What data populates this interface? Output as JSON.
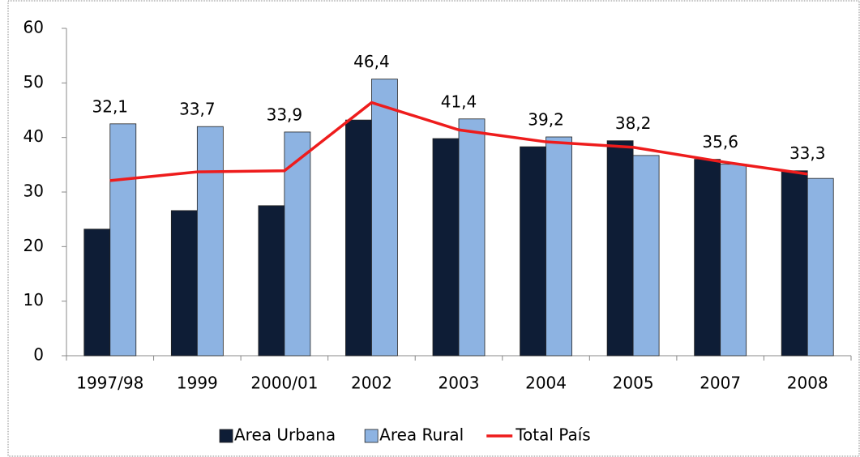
{
  "chart_data": {
    "type": "bar",
    "categories": [
      "1997/98",
      "1999",
      "2000/01",
      "2002",
      "2003",
      "2004",
      "2005",
      "2007",
      "2008"
    ],
    "series": [
      {
        "name": "Area Urbana",
        "type": "bar",
        "color": "#0e1d36",
        "values": [
          23.2,
          26.6,
          27.5,
          43.2,
          39.8,
          38.3,
          39.4,
          36.0,
          33.9
        ]
      },
      {
        "name": "Area Rural",
        "type": "bar",
        "color": "#8db3e2",
        "values": [
          42.5,
          42.0,
          41.0,
          50.7,
          43.4,
          40.1,
          36.7,
          35.1,
          32.5
        ]
      },
      {
        "name": "Total País",
        "type": "line",
        "color": "#ee1c1c",
        "values": [
          32.1,
          33.7,
          33.9,
          46.4,
          41.4,
          39.2,
          38.2,
          35.6,
          33.3
        ],
        "value_labels": [
          "32,1",
          "33,7",
          "33,9",
          "46,4",
          "41,4",
          "39,2",
          "38,2",
          "35,6",
          "33,3"
        ]
      }
    ],
    "ylim": [
      0,
      60
    ],
    "yticks": [
      0,
      10,
      20,
      30,
      40,
      50,
      60
    ],
    "grid": false,
    "legend": "bottom"
  }
}
